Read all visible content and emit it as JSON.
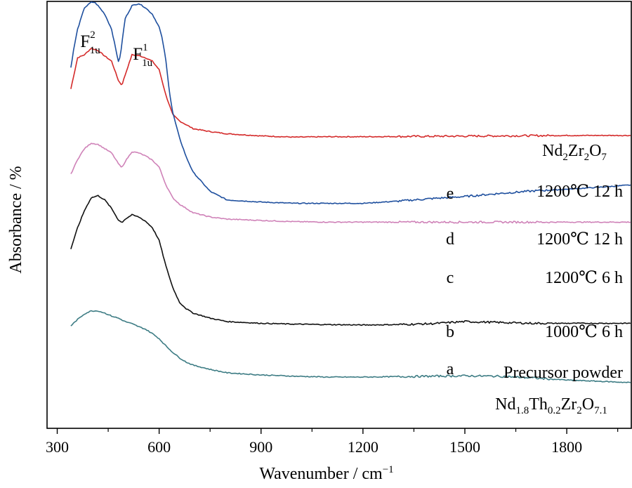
{
  "chart_data": {
    "type": "line",
    "xlabel": "Wavenumber / cm",
    "xlabel_sup": "−1",
    "ylabel": "Absorbance / %",
    "xlim": [
      270,
      1990
    ],
    "ylim": [
      0,
      1
    ],
    "xticks": [
      300,
      600,
      900,
      1200,
      1500,
      1800
    ],
    "grid": false,
    "legend": "none",
    "peak_labels": [
      {
        "base": "F",
        "sub": "1u",
        "sup": "2",
        "x": 405
      },
      {
        "base": "F",
        "sub": "1u",
        "sup": "1",
        "x": 560
      }
    ],
    "header_labels": {
      "top": {
        "segments": [
          [
            "Nd",
            ""
          ],
          [
            "2",
            "sub"
          ],
          [
            "Zr",
            ""
          ],
          [
            "2",
            "sub"
          ],
          [
            "O",
            ""
          ],
          [
            "7",
            "sub"
          ]
        ]
      },
      "bottom": {
        "segments": [
          [
            "Nd",
            ""
          ],
          [
            "1.8",
            "sub"
          ],
          [
            "Th",
            ""
          ],
          [
            "0.2",
            "sub"
          ],
          [
            "Zr",
            ""
          ],
          [
            "2",
            "sub"
          ],
          [
            "O",
            ""
          ],
          [
            "7.1",
            "sub"
          ]
        ]
      }
    },
    "series": [
      {
        "letter": "e",
        "condition": "1200℃ 12 h",
        "color": "#d42a2a",
        "x": [
          340,
          360,
          380,
          400,
          420,
          440,
          460,
          480,
          490,
          500,
          520,
          540,
          560,
          580,
          600,
          620,
          640,
          660,
          700,
          750,
          800,
          900,
          1000,
          1100,
          1200,
          1400,
          1600,
          1800,
          1990
        ],
        "y": [
          0.795,
          0.868,
          0.875,
          0.89,
          0.885,
          0.872,
          0.86,
          0.815,
          0.803,
          0.828,
          0.875,
          0.873,
          0.868,
          0.86,
          0.84,
          0.78,
          0.735,
          0.72,
          0.702,
          0.695,
          0.69,
          0.685,
          0.682,
          0.683,
          0.683,
          0.684,
          0.685,
          0.686,
          0.686
        ]
      },
      {
        "letter": "d",
        "condition": "1200℃ 12 h",
        "color": "#1e4f9e",
        "x": [
          340,
          350,
          360,
          380,
          400,
          410,
          420,
          440,
          460,
          475,
          480,
          485,
          490,
          500,
          520,
          540,
          560,
          580,
          600,
          610,
          620,
          630,
          640,
          660,
          680,
          700,
          750,
          800,
          900,
          1000,
          1100,
          1200,
          1300,
          1400,
          1500,
          1600,
          1700,
          1800,
          1900,
          1990
        ],
        "y": [
          0.845,
          0.895,
          0.935,
          0.985,
          0.998,
          0.998,
          0.99,
          0.97,
          0.935,
          0.878,
          0.86,
          0.868,
          0.9,
          0.96,
          0.99,
          0.995,
          0.985,
          0.97,
          0.94,
          0.91,
          0.86,
          0.79,
          0.74,
          0.68,
          0.635,
          0.6,
          0.555,
          0.535,
          0.53,
          0.527,
          0.527,
          0.527,
          0.532,
          0.538,
          0.543,
          0.55,
          0.556,
          0.56,
          0.565,
          0.57
        ]
      },
      {
        "letter": "c",
        "condition": "1200℃ 6 h",
        "color": "#cf82b8",
        "x": [
          340,
          360,
          380,
          400,
          420,
          440,
          460,
          480,
          490,
          500,
          520,
          540,
          560,
          580,
          600,
          620,
          640,
          660,
          700,
          750,
          800,
          900,
          1000,
          1100,
          1200,
          1400,
          1600,
          1800,
          1990
        ],
        "y": [
          0.595,
          0.63,
          0.655,
          0.668,
          0.665,
          0.655,
          0.645,
          0.62,
          0.61,
          0.625,
          0.648,
          0.645,
          0.638,
          0.628,
          0.612,
          0.57,
          0.54,
          0.525,
          0.505,
          0.495,
          0.49,
          0.487,
          0.484,
          0.483,
          0.483,
          0.483,
          0.483,
          0.483,
          0.483
        ]
      },
      {
        "letter": "b",
        "condition": "1000℃ 6 h",
        "color": "#111111",
        "x": [
          340,
          360,
          380,
          400,
          420,
          440,
          460,
          480,
          490,
          500,
          520,
          540,
          560,
          580,
          600,
          620,
          640,
          660,
          680,
          700,
          750,
          800,
          900,
          1000,
          1100,
          1200,
          1300,
          1400,
          1500,
          1600,
          1700,
          1800,
          1990
        ],
        "y": [
          0.42,
          0.47,
          0.51,
          0.54,
          0.545,
          0.535,
          0.515,
          0.488,
          0.482,
          0.49,
          0.5,
          0.495,
          0.485,
          0.47,
          0.44,
          0.38,
          0.33,
          0.295,
          0.28,
          0.27,
          0.258,
          0.25,
          0.246,
          0.244,
          0.243,
          0.242,
          0.243,
          0.245,
          0.25,
          0.248,
          0.246,
          0.246,
          0.246
        ]
      },
      {
        "letter": "a",
        "condition": "Precursor powder",
        "color": "#3d7c84",
        "x": [
          340,
          360,
          380,
          400,
          420,
          440,
          460,
          480,
          500,
          520,
          540,
          560,
          580,
          600,
          620,
          640,
          660,
          680,
          700,
          750,
          800,
          900,
          1000,
          1100,
          1200,
          1300,
          1400,
          1500,
          1600,
          1700,
          1800,
          1900,
          1990
        ],
        "y": [
          0.24,
          0.255,
          0.268,
          0.275,
          0.275,
          0.27,
          0.263,
          0.258,
          0.25,
          0.245,
          0.238,
          0.232,
          0.222,
          0.21,
          0.193,
          0.178,
          0.165,
          0.155,
          0.148,
          0.138,
          0.13,
          0.125,
          0.122,
          0.12,
          0.12,
          0.121,
          0.122,
          0.123,
          0.122,
          0.118,
          0.113,
          0.11,
          0.107
        ]
      }
    ]
  }
}
